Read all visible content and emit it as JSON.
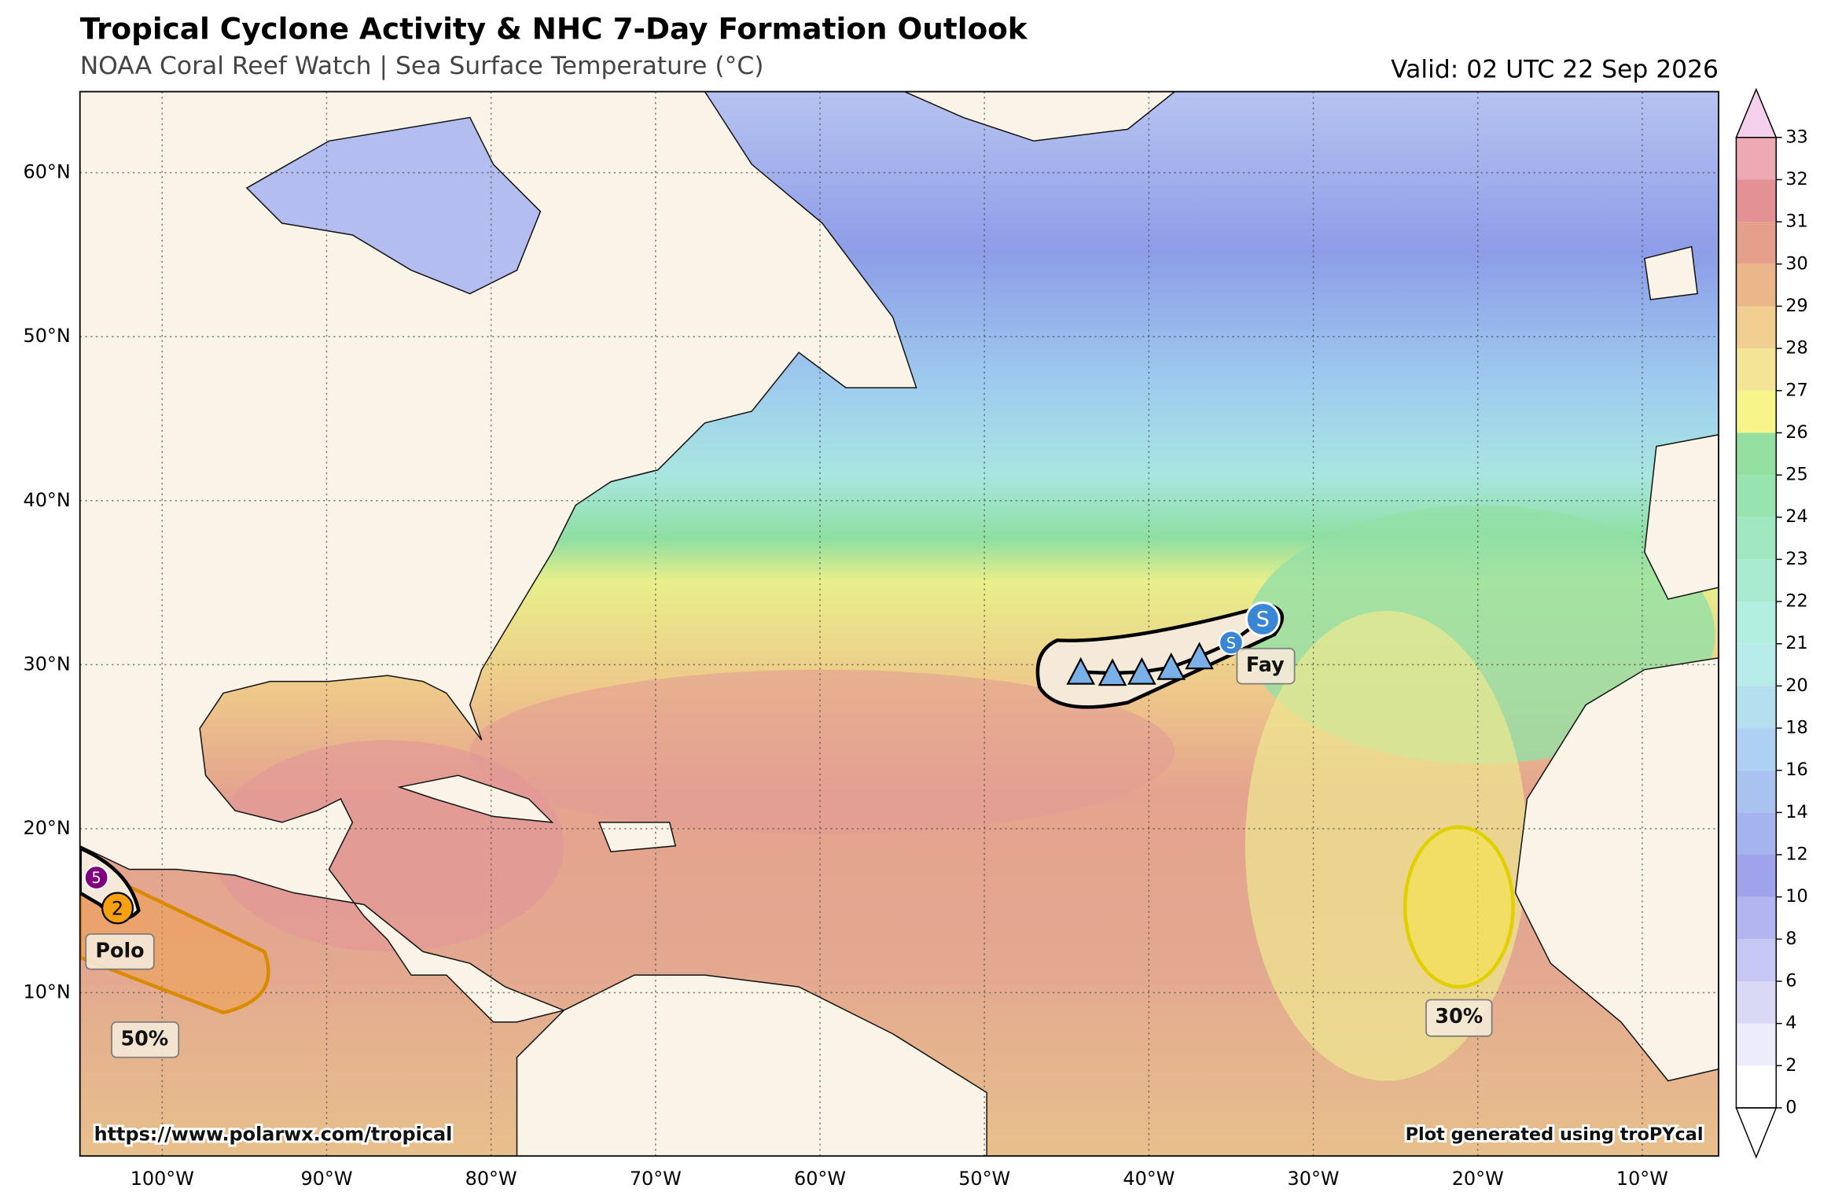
{
  "header": {
    "title": "Tropical Cyclone Activity & NHC 7-Day Formation Outlook",
    "subtitle": "NOAA Coral Reef Watch | Sea Surface Temperature (°C)",
    "valid": "Valid: 02 UTC 22 Sep 2026"
  },
  "map": {
    "lat_labels": [
      "60°N",
      "50°N",
      "40°N",
      "30°N",
      "20°N",
      "10°N"
    ],
    "lon_labels": [
      "100°W",
      "90°W",
      "80°W",
      "70°W",
      "60°W",
      "50°W",
      "40°W",
      "30°W",
      "20°W",
      "10°W"
    ]
  },
  "colorbar": {
    "ticks": [
      0,
      2,
      4,
      6,
      8,
      10,
      12,
      14,
      16,
      18,
      20,
      21,
      22,
      23,
      24,
      25,
      26,
      27,
      28,
      29,
      30,
      31,
      32,
      33
    ]
  },
  "storms": [
    {
      "name": "Fay",
      "marker_small": "S",
      "marker_large": "S"
    },
    {
      "name": "Polo",
      "marker_past": "5",
      "marker_current": "2"
    }
  ],
  "outlooks": [
    {
      "label": "50%"
    },
    {
      "label": "30%"
    }
  ],
  "footer": {
    "left": "https://www.polarwx.com/tropical",
    "right": "Plot generated using troPYcal"
  }
}
